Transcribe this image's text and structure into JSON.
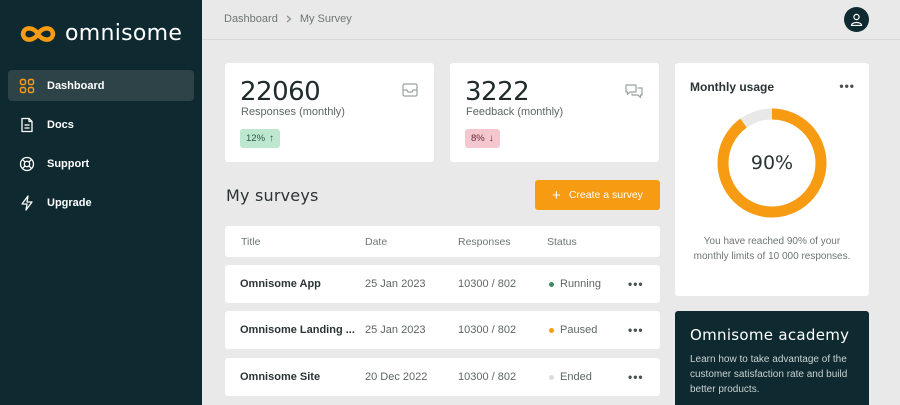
{
  "app": {
    "name": "omnisome",
    "accent_color": "#f79c12",
    "sidebar_bg": "#0e2a30"
  },
  "sidebar": {
    "items": [
      {
        "label": "Dashboard",
        "icon": "grid-icon",
        "active": true
      },
      {
        "label": "Docs",
        "icon": "document-icon",
        "active": false
      },
      {
        "label": "Support",
        "icon": "lifebuoy-icon",
        "active": false
      },
      {
        "label": "Upgrade",
        "icon": "lightning-icon",
        "active": false
      }
    ]
  },
  "breadcrumb": {
    "items": [
      "Dashboard",
      "My Survey"
    ]
  },
  "header": {
    "avatar_icon": "user-icon"
  },
  "stats": [
    {
      "value": "22060",
      "label": "Responses (monthly)",
      "badge": "12%",
      "trend": "up",
      "icon": "inbox-icon"
    },
    {
      "value": "3222",
      "label": "Feedback (monthly)",
      "badge": "8%",
      "trend": "down",
      "icon": "chat-icon"
    }
  ],
  "surveys": {
    "title": "My surveys",
    "create_label": "Create a survey",
    "columns": [
      "Title",
      "Date",
      "Responses",
      "Status"
    ],
    "rows": [
      {
        "title": "Omnisome App",
        "date": "25 Jan 2023",
        "responses": "10300 / 802",
        "status": "Running",
        "status_color": "#3d8a64"
      },
      {
        "title": "Omnisome Landing ...",
        "date": "25 Jan 2023",
        "responses": "10300 / 802",
        "status": "Paused",
        "status_color": "#f79c12"
      },
      {
        "title": "Omnisome Site",
        "date": "20 Dec 2022",
        "responses": "10300 / 802",
        "status": "Ended",
        "status_color": "#dcdedd"
      }
    ]
  },
  "usage": {
    "title": "Monthly usage",
    "percent_label": "90%",
    "percent_value": 0.9,
    "description": "You have reached 90% of your monthly limits of 10 000 responses."
  },
  "academy": {
    "title": "Omnisome academy",
    "text": "Learn how to take advantage of the customer satisfaction rate and build better products."
  }
}
